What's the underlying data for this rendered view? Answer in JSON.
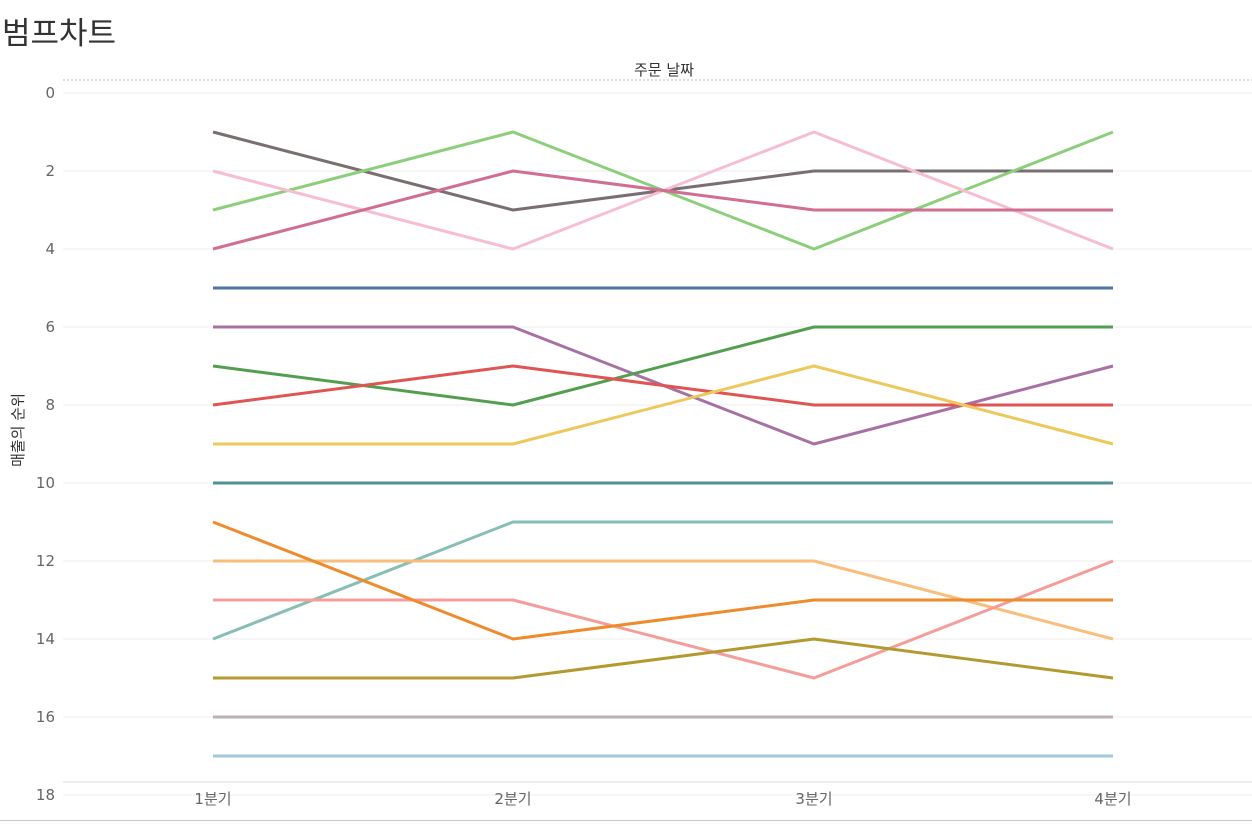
{
  "page": {
    "title": "범프차트"
  },
  "chart_data": {
    "type": "line",
    "title": "범프차트",
    "column_header": "주문 날짜",
    "xlabel": "",
    "ylabel": "매출의 순위",
    "categories": [
      "1분기",
      "2분기",
      "3분기",
      "4분기"
    ],
    "y_reversed": true,
    "ylim": [
      0,
      18
    ],
    "yticks": [
      0,
      2,
      4,
      6,
      8,
      10,
      12,
      14,
      16,
      18
    ],
    "grid": true,
    "legend": "none",
    "series": [
      {
        "color": "#7a6f6f",
        "values": [
          1,
          3,
          2,
          2
        ]
      },
      {
        "color": "#8ccf7a",
        "values": [
          3,
          1,
          4,
          1
        ]
      },
      {
        "color": "#f6bed0",
        "values": [
          2,
          4,
          1,
          4
        ]
      },
      {
        "color": "#d06e93",
        "values": [
          4,
          2,
          3,
          3
        ]
      },
      {
        "color": "#4f73a6",
        "values": [
          5,
          5,
          5,
          5
        ]
      },
      {
        "color": "#a871a3",
        "values": [
          6,
          6,
          9,
          7
        ]
      },
      {
        "color": "#549e4f",
        "values": [
          7,
          8,
          6,
          6
        ]
      },
      {
        "color": "#de5553",
        "values": [
          8,
          7,
          8,
          8
        ]
      },
      {
        "color": "#edc95d",
        "values": [
          9,
          9,
          7,
          9
        ]
      },
      {
        "color": "#4f9294",
        "values": [
          10,
          10,
          10,
          10
        ]
      },
      {
        "color": "#86bfb5",
        "values": [
          14,
          11,
          11,
          11
        ]
      },
      {
        "color": "#f9be7c",
        "values": [
          12,
          12,
          12,
          14
        ]
      },
      {
        "color": "#f49d9b",
        "values": [
          13,
          13,
          15,
          12
        ]
      },
      {
        "color": "#ee8b2c",
        "values": [
          11,
          14,
          13,
          13
        ]
      },
      {
        "color": "#b39a30",
        "values": [
          15,
          15,
          14,
          15
        ]
      },
      {
        "color": "#bfb1b3",
        "values": [
          16,
          16,
          16,
          16
        ]
      },
      {
        "color": "#9fcadb",
        "values": [
          17,
          17,
          17,
          17
        ]
      }
    ]
  }
}
